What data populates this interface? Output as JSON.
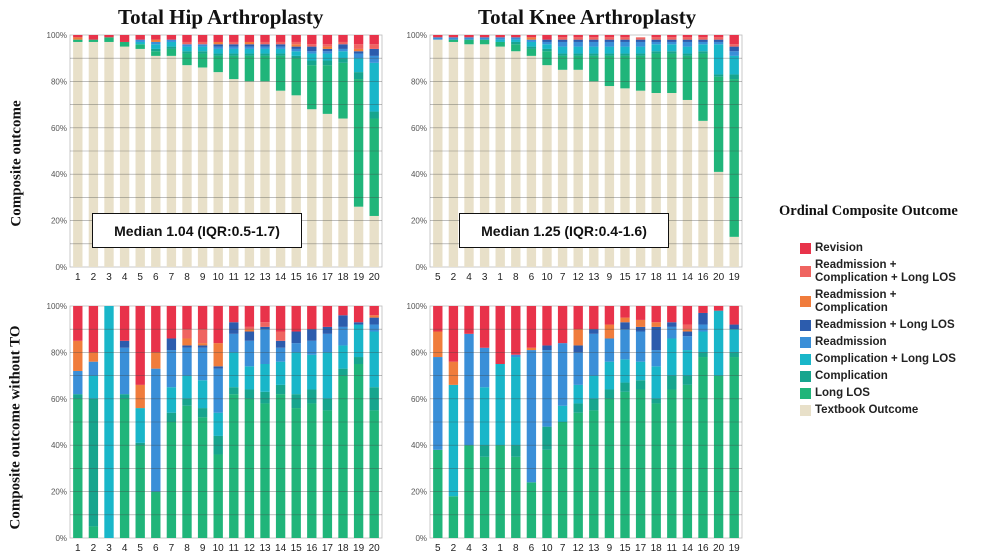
{
  "titles": {
    "hip": "Total Hip Arthroplasty",
    "knee": "Total Knee Arthroplasty"
  },
  "row_labels": {
    "top": "Composite outcome",
    "bottom": "Composite outcome without TO"
  },
  "legend": {
    "title": "Ordinal Composite Outcome",
    "items": [
      {
        "label": "Revision",
        "color": "#e8334a"
      },
      {
        "label": "Readmission +\nComplication + Long LOS",
        "color": "#ef6460"
      },
      {
        "label": "Readmission +\nComplication",
        "color": "#f07c3c"
      },
      {
        "label": "Readmission + Long LOS",
        "color": "#2c5cad"
      },
      {
        "label": "Readmission",
        "color": "#3a8fd8"
      },
      {
        "label": "Complication + Long LOS",
        "color": "#19b6c9"
      },
      {
        "label": "Complication",
        "color": "#17a58e"
      },
      {
        "label": "Long LOS",
        "color": "#20b57a"
      },
      {
        "label": "Textbook Outcome",
        "color": "#e8e0c9"
      }
    ]
  },
  "chart_data": [
    {
      "type": "bar",
      "stacked": true,
      "title": "Total Hip Arthroplasty",
      "ylabel": "Composite outcome",
      "ylim": [
        0,
        100
      ],
      "yticks": [
        "0%",
        "20%",
        "40%",
        "60%",
        "80%",
        "100%"
      ],
      "median_annotation": "Median 1.04 (IQR:0.5-1.7)",
      "categories": [
        "1",
        "2",
        "3",
        "4",
        "5",
        "6",
        "7",
        "8",
        "9",
        "10",
        "11",
        "12",
        "13",
        "14",
        "15",
        "16",
        "17",
        "18",
        "19",
        "20"
      ],
      "series": [
        {
          "name": "Textbook Outcome",
          "color": "#e8e0c9",
          "values": [
            97,
            97,
            97,
            95,
            94,
            91,
            91,
            87,
            86,
            84,
            81,
            80,
            80,
            76,
            74,
            68,
            66,
            64,
            26,
            22
          ]
        },
        {
          "name": "Long LOS",
          "color": "#20b57a",
          "values": [
            1,
            1,
            2,
            2,
            2,
            2,
            3,
            5,
            6,
            7,
            10,
            11,
            11,
            15,
            16,
            19,
            21,
            24,
            55,
            42
          ]
        },
        {
          "name": "Complication",
          "color": "#17a58e",
          "values": [
            0,
            0,
            0,
            0,
            0,
            1,
            1,
            1,
            1,
            1,
            1,
            1,
            1,
            1,
            1,
            2,
            2,
            2,
            3,
            3
          ]
        },
        {
          "name": "Complication + Long LOS",
          "color": "#19b6c9",
          "values": [
            0,
            0,
            0,
            0,
            1,
            2,
            2,
            2,
            2,
            2,
            2,
            2,
            2,
            2,
            2,
            3,
            3,
            3,
            6,
            21
          ]
        },
        {
          "name": "Readmission",
          "color": "#3a8fd8",
          "values": [
            0,
            0,
            0,
            0,
            1,
            1,
            1,
            1,
            1,
            1,
            1,
            1,
            1,
            1,
            1,
            1,
            1,
            1,
            2,
            3
          ]
        },
        {
          "name": "Readmission + Long LOS",
          "color": "#2c5cad",
          "values": [
            0,
            0,
            0,
            0,
            0,
            0,
            0,
            0,
            0,
            1,
            1,
            1,
            1,
            1,
            1,
            2,
            1,
            2,
            1,
            3
          ]
        },
        {
          "name": "Readmission + Complication",
          "color": "#f07c3c",
          "values": [
            1,
            0,
            0,
            0,
            0,
            1,
            0,
            0,
            0,
            1,
            0,
            1,
            0,
            0,
            1,
            0,
            1,
            0,
            1,
            0
          ]
        },
        {
          "name": "Readmission + Complication + Long LOS",
          "color": "#ef6460",
          "values": [
            0,
            0,
            0,
            0,
            0,
            0,
            0,
            1,
            1,
            0,
            1,
            0,
            1,
            1,
            1,
            1,
            1,
            1,
            2,
            2
          ]
        },
        {
          "name": "Revision",
          "color": "#e8334a",
          "values": [
            1,
            2,
            1,
            3,
            2,
            2,
            2,
            3,
            3,
            3,
            3,
            3,
            3,
            3,
            3,
            4,
            4,
            3,
            4,
            4
          ]
        }
      ]
    },
    {
      "type": "bar",
      "stacked": true,
      "title": "Total Knee Arthroplasty",
      "ylabel": "Composite outcome",
      "ylim": [
        0,
        100
      ],
      "yticks": [
        "0%",
        "20%",
        "40%",
        "60%",
        "80%",
        "100%"
      ],
      "median_annotation": "Median 1.25 (IQR:0.4-1.6)",
      "categories": [
        "5",
        "2",
        "4",
        "3",
        "1",
        "8",
        "6",
        "10",
        "7",
        "12",
        "13",
        "9",
        "15",
        "17",
        "18",
        "11",
        "14",
        "16",
        "20",
        "19"
      ],
      "series": [
        {
          "name": "Textbook Outcome",
          "color": "#e8e0c9",
          "values": [
            98,
            97,
            96,
            96,
            95,
            93,
            91,
            87,
            85,
            85,
            80,
            78,
            77,
            76,
            75,
            75,
            72,
            63,
            41,
            13
          ]
        },
        {
          "name": "Long LOS",
          "color": "#20b57a",
          "values": [
            0,
            1,
            2,
            2,
            2,
            3,
            3,
            6,
            6,
            6,
            11,
            13,
            14,
            15,
            17,
            17,
            19,
            29,
            41,
            68
          ]
        },
        {
          "name": "Complication",
          "color": "#17a58e",
          "values": [
            0,
            0,
            0,
            0,
            0,
            1,
            1,
            1,
            1,
            1,
            1,
            1,
            1,
            1,
            1,
            1,
            1,
            1,
            1,
            2
          ]
        },
        {
          "name": "Complication + Long LOS",
          "color": "#19b6c9",
          "values": [
            0,
            0,
            0,
            0,
            1,
            1,
            2,
            2,
            3,
            3,
            3,
            3,
            3,
            3,
            3,
            3,
            3,
            3,
            13,
            8
          ]
        },
        {
          "name": "Readmission",
          "color": "#3a8fd8",
          "values": [
            1,
            1,
            1,
            1,
            1,
            1,
            1,
            1,
            2,
            2,
            2,
            2,
            2,
            2,
            1,
            1,
            2,
            1,
            1,
            2
          ]
        },
        {
          "name": "Readmission + Long LOS",
          "color": "#2c5cad",
          "values": [
            0,
            0,
            0,
            0,
            0,
            0,
            0,
            1,
            1,
            1,
            1,
            1,
            1,
            1,
            1,
            1,
            1,
            1,
            1,
            2
          ]
        },
        {
          "name": "Readmission + Complication",
          "color": "#f07c3c",
          "values": [
            0,
            0,
            0,
            0,
            0,
            0,
            1,
            0,
            0,
            0,
            0,
            0,
            0,
            0,
            0,
            0,
            0,
            0,
            0,
            0
          ]
        },
        {
          "name": "Readmission + Complication + Long LOS",
          "color": "#ef6460",
          "values": [
            0,
            0,
            0,
            0,
            0,
            0,
            0,
            0,
            1,
            1,
            1,
            1,
            1,
            1,
            1,
            1,
            1,
            1,
            1,
            1
          ]
        },
        {
          "name": "Revision",
          "color": "#e8334a",
          "values": [
            1,
            1,
            1,
            1,
            1,
            1,
            1,
            2,
            1,
            1,
            1,
            1,
            1,
            0,
            1,
            1,
            1,
            1,
            1,
            4
          ]
        }
      ]
    },
    {
      "type": "bar",
      "stacked": true,
      "ylabel": "Composite outcome without TO",
      "ylim": [
        0,
        100
      ],
      "yticks": [
        "0%",
        "20%",
        "40%",
        "60%",
        "80%",
        "100%"
      ],
      "categories": [
        "1",
        "2",
        "3",
        "4",
        "5",
        "6",
        "7",
        "8",
        "9",
        "10",
        "11",
        "12",
        "13",
        "14",
        "15",
        "16",
        "17",
        "18",
        "19",
        "20"
      ],
      "series": [
        {
          "name": "Long LOS",
          "color": "#20b57a",
          "values": [
            60,
            5,
            0,
            60,
            40,
            20,
            50,
            57,
            52,
            36,
            62,
            60,
            58,
            62,
            56,
            58,
            55,
            70,
            75,
            55
          ]
        },
        {
          "name": "Complication",
          "color": "#17a58e",
          "values": [
            2,
            55,
            0,
            2,
            1,
            0,
            4,
            3,
            4,
            8,
            3,
            4,
            5,
            4,
            6,
            6,
            5,
            3,
            3,
            10
          ]
        },
        {
          "name": "Complication + Long LOS",
          "color": "#19b6c9",
          "values": [
            0,
            10,
            100,
            0,
            15,
            0,
            11,
            10,
            12,
            10,
            15,
            10,
            12,
            10,
            18,
            15,
            20,
            10,
            14,
            24
          ]
        },
        {
          "name": "Readmission",
          "color": "#3a8fd8",
          "values": [
            10,
            6,
            0,
            20,
            0,
            53,
            16,
            12,
            14,
            19,
            8,
            11,
            15,
            6,
            4,
            6,
            8,
            8,
            0,
            3
          ]
        },
        {
          "name": "Readmission + Long LOS",
          "color": "#2c5cad",
          "values": [
            0,
            0,
            0,
            3,
            0,
            0,
            5,
            1,
            1,
            1,
            5,
            4,
            1,
            3,
            5,
            5,
            3,
            5,
            1,
            3
          ]
        },
        {
          "name": "Readmission + Complication",
          "color": "#f07c3c",
          "values": [
            13,
            4,
            0,
            0,
            10,
            7,
            0,
            3,
            1,
            10,
            0,
            1,
            0,
            0,
            0,
            0,
            0,
            0,
            0,
            1
          ]
        },
        {
          "name": "Readmission + Complication + Long LOS",
          "color": "#ef6460",
          "values": [
            0,
            0,
            0,
            0,
            0,
            0,
            0,
            4,
            6,
            0,
            0,
            1,
            2,
            4,
            0,
            0,
            0,
            0,
            0,
            0
          ]
        },
        {
          "name": "Revision",
          "color": "#e8334a",
          "values": [
            15,
            20,
            0,
            15,
            34,
            20,
            14,
            10,
            10,
            16,
            7,
            9,
            7,
            11,
            11,
            10,
            9,
            4,
            7,
            4
          ]
        }
      ]
    },
    {
      "type": "bar",
      "stacked": true,
      "ylabel": "Composite outcome without TO",
      "ylim": [
        0,
        100
      ],
      "yticks": [
        "0%",
        "20%",
        "40%",
        "60%",
        "80%",
        "100%"
      ],
      "categories": [
        "5",
        "2",
        "4",
        "3",
        "1",
        "8",
        "6",
        "10",
        "7",
        "12",
        "13",
        "9",
        "15",
        "17",
        "18",
        "11",
        "14",
        "16",
        "20",
        "19"
      ],
      "series": [
        {
          "name": "Long LOS",
          "color": "#20b57a",
          "values": [
            38,
            18,
            40,
            35,
            40,
            35,
            24,
            38,
            50,
            54,
            55,
            60,
            63,
            64,
            58,
            64,
            66,
            78,
            70,
            78
          ]
        },
        {
          "name": "Complication",
          "color": "#17a58e",
          "values": [
            0,
            0,
            0,
            5,
            0,
            5,
            0,
            10,
            0,
            4,
            5,
            4,
            4,
            4,
            2,
            6,
            4,
            2,
            0,
            2
          ]
        },
        {
          "name": "Complication + Long LOS",
          "color": "#19b6c9",
          "values": [
            0,
            48,
            0,
            25,
            35,
            38,
            0,
            0,
            7,
            8,
            10,
            12,
            10,
            8,
            14,
            16,
            11,
            9,
            28,
            10
          ]
        },
        {
          "name": "Readmission",
          "color": "#3a8fd8",
          "values": [
            40,
            0,
            48,
            17,
            0,
            1,
            57,
            33,
            27,
            14,
            18,
            10,
            13,
            13,
            7,
            5,
            6,
            3,
            0,
            0
          ]
        },
        {
          "name": "Readmission + Long LOS",
          "color": "#2c5cad",
          "values": [
            0,
            0,
            0,
            0,
            0,
            0,
            0,
            2,
            0,
            3,
            2,
            0,
            3,
            2,
            10,
            2,
            2,
            5,
            0,
            2
          ]
        },
        {
          "name": "Readmission + Complication",
          "color": "#f07c3c",
          "values": [
            11,
            10,
            0,
            0,
            0,
            0,
            1,
            0,
            0,
            7,
            0,
            6,
            2,
            3,
            2,
            0,
            1,
            0,
            0,
            0
          ]
        },
        {
          "name": "Readmission + Complication + Long LOS",
          "color": "#ef6460",
          "values": [
            0,
            0,
            0,
            0,
            0,
            0,
            0,
            0,
            0,
            0,
            0,
            0,
            0,
            0,
            0,
            0,
            2,
            0,
            0,
            0
          ]
        },
        {
          "name": "Revision",
          "color": "#e8334a",
          "values": [
            11,
            24,
            12,
            18,
            25,
            21,
            18,
            17,
            16,
            10,
            10,
            8,
            5,
            6,
            7,
            7,
            8,
            3,
            2,
            8
          ]
        }
      ]
    }
  ]
}
